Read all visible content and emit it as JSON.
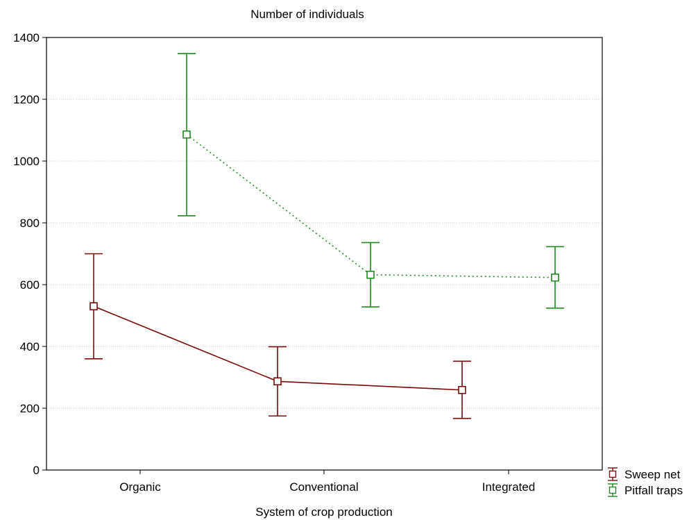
{
  "chart_data": {
    "type": "line",
    "title": "Number of individuals",
    "xlabel": "System of crop production",
    "ylabel": "",
    "categories": [
      "Organic",
      "Conventional",
      "Integrated"
    ],
    "ylim": [
      0,
      1400
    ],
    "yticks": [
      0,
      200,
      400,
      600,
      800,
      1000,
      1200,
      1400
    ],
    "grid": true,
    "legend_position": "bottom-right, outside plot",
    "series": [
      {
        "name": "Sweep net",
        "color": "#7a0a0a",
        "line_style": "solid",
        "marker": "open-square",
        "values": [
          530,
          287,
          259
        ],
        "error_low": [
          360,
          175,
          167
        ],
        "error_high": [
          700,
          399,
          352
        ]
      },
      {
        "name": "Pitfall traps",
        "color": "#1f8a1f",
        "line_style": "dotted",
        "marker": "open-square",
        "values": [
          1086,
          632,
          623
        ],
        "error_low": [
          823,
          528,
          524
        ],
        "error_high": [
          1348,
          736,
          723
        ]
      }
    ]
  }
}
